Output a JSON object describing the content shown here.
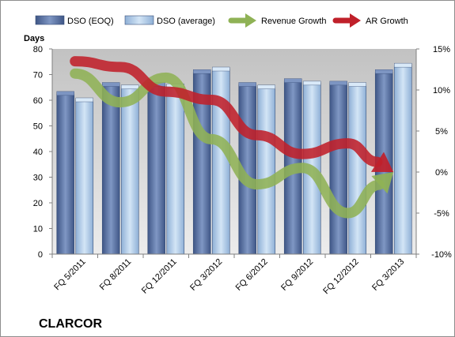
{
  "company": "CLARCOR",
  "chart_data": {
    "type": "bar",
    "categories": [
      "FQ 5/2011",
      "FQ 8/2011",
      "FQ 12/2011",
      "FQ 3/2012",
      "FQ 6/2012",
      "FQ 9/2012",
      "FQ 12/2012",
      "FQ 3/2013"
    ],
    "series": [
      {
        "name": "DSO (EOQ)",
        "type": "bar",
        "axis": "left",
        "color": "#5b77a8",
        "values": [
          62.5,
          66,
          66,
          71,
          66,
          67.5,
          66.5,
          71
        ]
      },
      {
        "name": "DSO (average)",
        "type": "bar",
        "axis": "left",
        "color": "#a9c8e8",
        "values": [
          60,
          65,
          65.5,
          72,
          65,
          66.5,
          66,
          73.5
        ]
      },
      {
        "name": "Revenue Growth",
        "type": "line",
        "axis": "right",
        "color": "#8fb255",
        "values": [
          12,
          8.5,
          11.5,
          4,
          -1.5,
          0.5,
          -5,
          0
        ]
      },
      {
        "name": "AR Growth",
        "type": "line",
        "axis": "right",
        "color": "#c0202a",
        "values": [
          13.5,
          12.8,
          9.8,
          8.8,
          4.5,
          2.2,
          3.5,
          0
        ]
      }
    ],
    "ylabel": "Days",
    "ylim": [
      0,
      80
    ],
    "yticks": [
      "0",
      "10",
      "20",
      "30",
      "40",
      "50",
      "60",
      "70",
      "80"
    ],
    "y2lim": [
      -10,
      15
    ],
    "y2ticks": [
      "-10%",
      "-5%",
      "0%",
      "5%",
      "10%",
      "15%"
    ],
    "legend_position": "top",
    "grid": false
  }
}
